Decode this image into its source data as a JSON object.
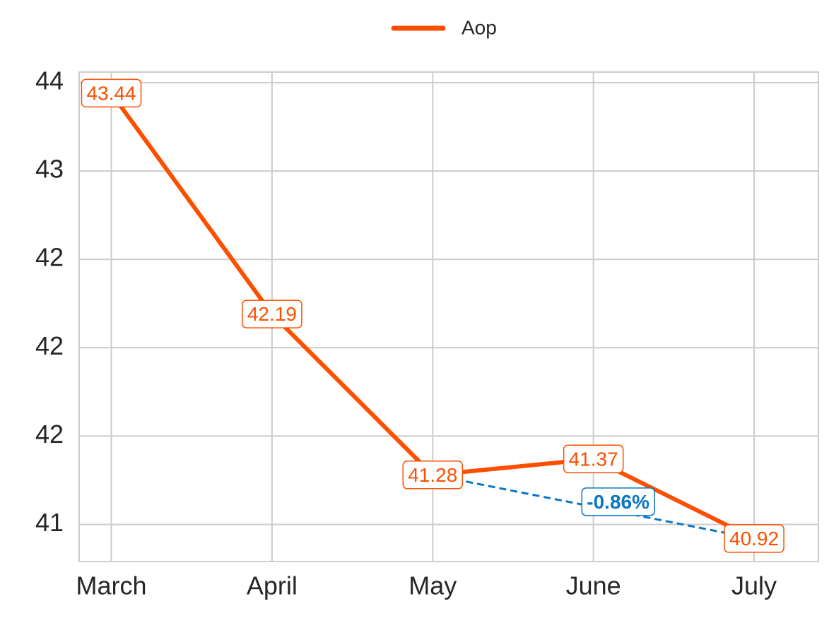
{
  "chart_data": {
    "type": "line",
    "categories": [
      "March",
      "April",
      "May",
      "June",
      "July"
    ],
    "series": [
      {
        "name": "Aop",
        "color": "#fc4f00",
        "values": [
          43.44,
          42.19,
          41.28,
          41.37,
          40.92
        ]
      }
    ],
    "ylim": [
      40.79,
      43.56
    ],
    "yticks": [
      {
        "value": 41,
        "label": "41"
      },
      {
        "value": 41.5,
        "label": "42"
      },
      {
        "value": 42,
        "label": "42"
      },
      {
        "value": 42.5,
        "label": "42"
      },
      {
        "value": 43,
        "label": "43"
      },
      {
        "value": 43.5,
        "label": "44"
      }
    ],
    "grid": true,
    "legend": "top",
    "annotation": {
      "text": "-0.86%",
      "color": "#0a77c5"
    }
  }
}
